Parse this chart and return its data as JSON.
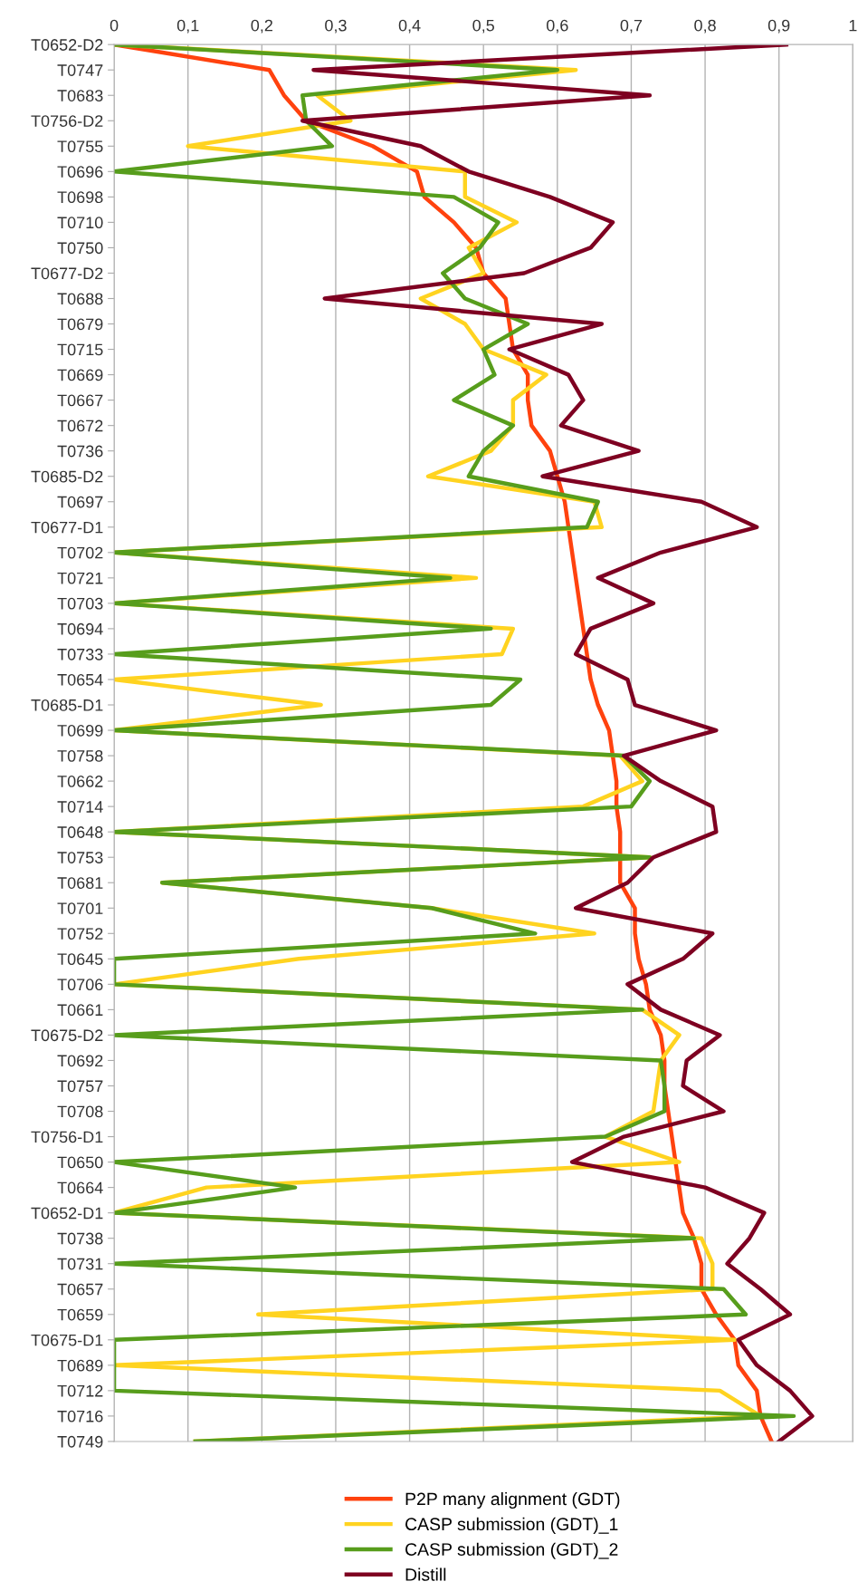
{
  "chart_data": {
    "type": "line",
    "orientation": "horizontal",
    "categories": [
      "T0652-D2",
      "T0747",
      "T0683",
      "T0756-D2",
      "T0755",
      "T0696",
      "T0698",
      "T0710",
      "T0750",
      "T0677-D2",
      "T0688",
      "T0679",
      "T0715",
      "T0669",
      "T0667",
      "T0672",
      "T0736",
      "T0685-D2",
      "T0697",
      "T0677-D1",
      "T0702",
      "T0721",
      "T0703",
      "T0694",
      "T0733",
      "T0654",
      "T0685-D1",
      "T0699",
      "T0758",
      "T0662",
      "T0714",
      "T0648",
      "T0753",
      "T0681",
      "T0701",
      "T0752",
      "T0645",
      "T0706",
      "T0661",
      "T0675-D2",
      "T0692",
      "T0757",
      "T0708",
      "T0756-D1",
      "T0650",
      "T0664",
      "T0652-D1",
      "T0738",
      "T0731",
      "T0657",
      "T0659",
      "T0675-D1",
      "T0689",
      "T0712",
      "T0716",
      "T0749"
    ],
    "series": [
      {
        "name": "P2P many alignment (GDT)",
        "color": "#ff420e",
        "values": [
          0,
          0.21,
          0.23,
          0.26,
          0.35,
          0.41,
          0.42,
          0.46,
          0.49,
          0.5,
          0.53,
          0.535,
          0.54,
          0.56,
          0.56,
          0.565,
          0.59,
          0.6,
          0.61,
          0.615,
          0.62,
          0.625,
          0.63,
          0.635,
          0.64,
          0.645,
          0.655,
          0.67,
          0.675,
          0.68,
          0.68,
          0.685,
          0.685,
          0.685,
          0.705,
          0.705,
          0.71,
          0.72,
          0.725,
          0.74,
          0.745,
          0.745,
          0.75,
          0.755,
          0.76,
          0.765,
          0.77,
          0.785,
          0.795,
          0.795,
          0.815,
          0.84,
          0.845,
          0.87,
          0.875,
          0.89
        ]
      },
      {
        "name": "CASP submission (GDT)_1",
        "color": "#ffd320",
        "values": [
          0,
          0.625,
          0.275,
          0.32,
          0.1,
          0.475,
          0.475,
          0.545,
          0.48,
          0.5,
          0.415,
          0.475,
          0.5,
          0.585,
          0.54,
          0.54,
          0.51,
          0.425,
          0.65,
          0.66,
          0,
          0.49,
          0,
          0.54,
          0.525,
          0,
          0.28,
          0,
          0.685,
          0.715,
          0.635,
          0,
          0.725,
          0.065,
          0.43,
          0.65,
          0.25,
          0,
          0.715,
          0.765,
          0.74,
          0.735,
          0.73,
          0.665,
          0.765,
          0.125,
          0,
          0.795,
          0.81,
          0.81,
          0.195,
          0.84,
          0,
          0.82,
          0.875,
          0.11
        ]
      },
      {
        "name": "CASP submission (GDT)_2",
        "color": "#579d1c",
        "values": [
          0,
          0.6,
          0.255,
          0.26,
          0.295,
          0,
          0.46,
          0.52,
          0.495,
          0.445,
          0.475,
          0.56,
          0.5,
          0.515,
          0.46,
          0.54,
          0.5,
          0.48,
          0.655,
          0.64,
          0,
          0.455,
          0,
          0.51,
          0,
          0.55,
          0.51,
          0,
          0.69,
          0.725,
          0.7,
          0,
          0.725,
          0.065,
          0.43,
          0.57,
          0,
          0,
          0.715,
          0,
          0.74,
          0.745,
          0.745,
          0.665,
          0,
          0.245,
          0,
          0.785,
          0,
          0.825,
          0.855,
          0,
          0,
          0,
          0.92,
          0.11
        ]
      },
      {
        "name": "Distill",
        "color": "#7e0021",
        "values": [
          0.91,
          0.27,
          0.725,
          0.255,
          0.415,
          0.48,
          0.59,
          0.675,
          0.645,
          0.555,
          0.285,
          0.66,
          0.535,
          0.615,
          0.635,
          0.605,
          0.71,
          0.58,
          0.795,
          0.87,
          0.74,
          0.655,
          0.73,
          0.645,
          0.625,
          0.695,
          0.705,
          0.815,
          0.69,
          0.74,
          0.81,
          0.815,
          0.73,
          0.695,
          0.625,
          0.81,
          0.77,
          0.695,
          0.74,
          0.82,
          0.775,
          0.77,
          0.825,
          0.69,
          0.62,
          0.8,
          0.88,
          0.86,
          0.83,
          0.875,
          0.915,
          0.845,
          0.87,
          0.915,
          0.945,
          0.9
        ]
      }
    ],
    "xlim": [
      0,
      1
    ],
    "xticks": [
      0,
      {
        "value": 0.1,
        "label": "0,1"
      },
      {
        "value": 0.2,
        "label": "0,2"
      },
      {
        "value": 0.3,
        "label": "0,3"
      },
      {
        "value": 0.4,
        "label": "0,4"
      },
      {
        "value": 0.5,
        "label": "0,5"
      },
      {
        "value": 0.6,
        "label": "0,6"
      },
      {
        "value": 0.7,
        "label": "0,7"
      },
      {
        "value": 0.8,
        "label": "0,8"
      },
      {
        "value": 0.9,
        "label": "0,9"
      },
      1
    ],
    "grid": "x",
    "legend": "bottom",
    "marker": "none",
    "line_style": "solid"
  }
}
